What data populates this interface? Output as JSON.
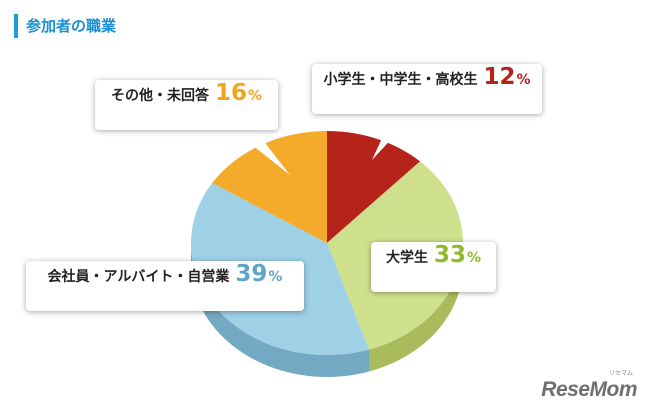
{
  "header": {
    "title": "参加者の職業"
  },
  "chart_data": {
    "type": "pie",
    "title": "参加者の職業",
    "percent_sign": "%",
    "slices": [
      {
        "label": "小学生・中学生・高校生",
        "value": 12,
        "color": "#b5231a",
        "side_color": "#8a1a12",
        "text_color": "#b5231a"
      },
      {
        "label": "大学生",
        "value": 33,
        "color": "#cfe08c",
        "side_color": "#a9bb5c",
        "text_color": "#8cbb2a"
      },
      {
        "label": "会社員・アルバイト・自営業",
        "value": 39,
        "color": "#9ed0e6",
        "side_color": "#74a9c4",
        "text_color": "#5fa5c8"
      },
      {
        "label": "その他・未回答",
        "value": 16,
        "color": "#f4ab2c",
        "side_color": "#c8861a",
        "text_color": "#f0a51c"
      }
    ]
  },
  "logo": {
    "text": "ReseMom",
    "small": "リセマム"
  }
}
